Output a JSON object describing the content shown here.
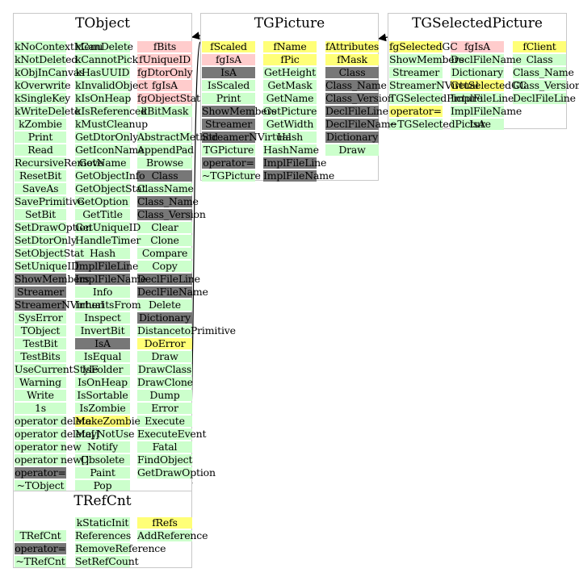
{
  "colors": {
    "green": "#ccffcc",
    "pink": "#ffcccc",
    "yellow": "#ffff77",
    "grey": "#777777",
    "border": "#c8c8c8"
  },
  "classes": {
    "tobject": {
      "title": "TObject",
      "col1": [
        {
          "t": "kNoContextMenu",
          "k": "green"
        },
        {
          "t": "kNotDeleted",
          "k": "green"
        },
        {
          "t": "kObjInCanvas",
          "k": "green"
        },
        {
          "t": "kOverwrite",
          "k": "green"
        },
        {
          "t": "kSingleKey",
          "k": "green"
        },
        {
          "t": "kWriteDelete",
          "k": "green"
        },
        {
          "t": "kZombie",
          "k": "green"
        },
        {
          "t": "Print",
          "k": "green"
        },
        {
          "t": "Read",
          "k": "green"
        },
        {
          "t": "RecursiveRemove",
          "k": "green"
        },
        {
          "t": "ResetBit",
          "k": "green"
        },
        {
          "t": "SaveAs",
          "k": "green"
        },
        {
          "t": "SavePrimitive",
          "k": "green"
        },
        {
          "t": "SetBit",
          "k": "green"
        },
        {
          "t": "SetDrawOption",
          "k": "green"
        },
        {
          "t": "SetDtorOnly",
          "k": "green"
        },
        {
          "t": "SetObjectStat",
          "k": "green"
        },
        {
          "t": "SetUniqueID",
          "k": "green"
        },
        {
          "t": "ShowMembers",
          "k": "grey"
        },
        {
          "t": "Streamer",
          "k": "grey"
        },
        {
          "t": "StreamerNVirtual",
          "k": "grey"
        },
        {
          "t": "SysError",
          "k": "green"
        },
        {
          "t": "TObject",
          "k": "green"
        },
        {
          "t": "TestBit",
          "k": "green"
        },
        {
          "t": "TestBits",
          "k": "green"
        },
        {
          "t": "UseCurrentStyle",
          "k": "green"
        },
        {
          "t": "Warning",
          "k": "green"
        },
        {
          "t": "Write",
          "k": "green"
        },
        {
          "t": "1s",
          "k": "green"
        },
        {
          "t": "operator delete",
          "k": "green"
        },
        {
          "t": "operator delete[]",
          "k": "green"
        },
        {
          "t": "operator new",
          "k": "green"
        },
        {
          "t": "operator new[]",
          "k": "green"
        },
        {
          "t": "operator=",
          "k": "grey"
        },
        {
          "t": "~TObject",
          "k": "green"
        }
      ],
      "col2": [
        {
          "t": "kCanDelete",
          "k": "green"
        },
        {
          "t": "kCannotPick",
          "k": "green"
        },
        {
          "t": "kHasUUID",
          "k": "green"
        },
        {
          "t": "kInvalidObject",
          "k": "green"
        },
        {
          "t": "kIsOnHeap",
          "k": "green"
        },
        {
          "t": "kIsReferenced",
          "k": "green"
        },
        {
          "t": "kMustCleanup",
          "k": "green"
        },
        {
          "t": "GetDtorOnly",
          "k": "green"
        },
        {
          "t": "GetIconName",
          "k": "green"
        },
        {
          "t": "GetName",
          "k": "green"
        },
        {
          "t": "GetObjectInfo",
          "k": "green"
        },
        {
          "t": "GetObjectStat",
          "k": "green"
        },
        {
          "t": "GetOption",
          "k": "green"
        },
        {
          "t": "GetTitle",
          "k": "green"
        },
        {
          "t": "GetUniqueID",
          "k": "green"
        },
        {
          "t": "HandleTimer",
          "k": "green"
        },
        {
          "t": "Hash",
          "k": "green"
        },
        {
          "t": "ImplFileLine",
          "k": "grey"
        },
        {
          "t": "ImplFileName",
          "k": "grey"
        },
        {
          "t": "Info",
          "k": "green"
        },
        {
          "t": "InheritsFrom",
          "k": "green"
        },
        {
          "t": "Inspect",
          "k": "green"
        },
        {
          "t": "InvertBit",
          "k": "green"
        },
        {
          "t": "IsA",
          "k": "grey"
        },
        {
          "t": "IsEqual",
          "k": "green"
        },
        {
          "t": "IsFolder",
          "k": "green"
        },
        {
          "t": "IsOnHeap",
          "k": "green"
        },
        {
          "t": "IsSortable",
          "k": "green"
        },
        {
          "t": "IsZombie",
          "k": "green"
        },
        {
          "t": "MakeZombie",
          "k": "yellow"
        },
        {
          "t": "MayNotUse",
          "k": "green"
        },
        {
          "t": "Notify",
          "k": "green"
        },
        {
          "t": "Obsolete",
          "k": "green"
        },
        {
          "t": "Paint",
          "k": "green"
        },
        {
          "t": "Pop",
          "k": "green"
        }
      ],
      "col3": [
        {
          "t": "fBits",
          "k": "pink"
        },
        {
          "t": "fUniqueID",
          "k": "pink"
        },
        {
          "t": "fgDtorOnly",
          "k": "pink"
        },
        {
          "t": "fgIsA",
          "k": "pink"
        },
        {
          "t": "fgObjectStat",
          "k": "pink"
        },
        {
          "t": "kBitMask",
          "k": "green"
        },
        {
          "t": "",
          "k": "none"
        },
        {
          "t": "AbstractMethod",
          "k": "green"
        },
        {
          "t": "AppendPad",
          "k": "green"
        },
        {
          "t": "Browse",
          "k": "green"
        },
        {
          "t": "Class",
          "k": "grey"
        },
        {
          "t": "ClassName",
          "k": "green"
        },
        {
          "t": "Class_Name",
          "k": "grey"
        },
        {
          "t": "Class_Version",
          "k": "grey"
        },
        {
          "t": "Clear",
          "k": "green"
        },
        {
          "t": "Clone",
          "k": "green"
        },
        {
          "t": "Compare",
          "k": "green"
        },
        {
          "t": "Copy",
          "k": "green"
        },
        {
          "t": "DeclFileLine",
          "k": "grey"
        },
        {
          "t": "DeclFileName",
          "k": "grey"
        },
        {
          "t": "Delete",
          "k": "green"
        },
        {
          "t": "Dictionary",
          "k": "grey"
        },
        {
          "t": "DistancetoPrimitive",
          "k": "green"
        },
        {
          "t": "DoError",
          "k": "yellow"
        },
        {
          "t": "Draw",
          "k": "green"
        },
        {
          "t": "DrawClass",
          "k": "green"
        },
        {
          "t": "DrawClone",
          "k": "green"
        },
        {
          "t": "Dump",
          "k": "green"
        },
        {
          "t": "Error",
          "k": "green"
        },
        {
          "t": "Execute",
          "k": "green"
        },
        {
          "t": "ExecuteEvent",
          "k": "green"
        },
        {
          "t": "Fatal",
          "k": "green"
        },
        {
          "t": "FindObject",
          "k": "green"
        },
        {
          "t": "GetDrawOption",
          "k": "green"
        }
      ]
    },
    "tgpicture": {
      "title": "TGPicture",
      "col1": [
        {
          "t": "fScaled",
          "k": "yellow"
        },
        {
          "t": "fgIsA",
          "k": "pink"
        },
        {
          "t": "IsA",
          "k": "grey"
        },
        {
          "t": "IsScaled",
          "k": "green"
        },
        {
          "t": "Print",
          "k": "green"
        },
        {
          "t": "ShowMembers",
          "k": "grey"
        },
        {
          "t": "Streamer",
          "k": "grey"
        },
        {
          "t": "StreamerNVirtual",
          "k": "grey"
        },
        {
          "t": "TGPicture",
          "k": "green"
        },
        {
          "t": "operator=",
          "k": "grey"
        },
        {
          "t": "~TGPicture",
          "k": "green"
        }
      ],
      "col2": [
        {
          "t": "fName",
          "k": "yellow"
        },
        {
          "t": "fPic",
          "k": "yellow"
        },
        {
          "t": "GetHeight",
          "k": "green"
        },
        {
          "t": "GetMask",
          "k": "green"
        },
        {
          "t": "GetName",
          "k": "green"
        },
        {
          "t": "GetPicture",
          "k": "green"
        },
        {
          "t": "GetWidth",
          "k": "green"
        },
        {
          "t": "Hash",
          "k": "green"
        },
        {
          "t": "HashName",
          "k": "green"
        },
        {
          "t": "ImplFileLine",
          "k": "grey"
        },
        {
          "t": "ImplFileName",
          "k": "grey"
        }
      ],
      "col3": [
        {
          "t": "fAttributes",
          "k": "yellow"
        },
        {
          "t": "fMask",
          "k": "yellow"
        },
        {
          "t": "Class",
          "k": "grey"
        },
        {
          "t": "Class_Name",
          "k": "grey"
        },
        {
          "t": "Class_Version",
          "k": "grey"
        },
        {
          "t": "DeclFileLine",
          "k": "grey"
        },
        {
          "t": "DeclFileName",
          "k": "grey"
        },
        {
          "t": "Dictionary",
          "k": "grey"
        },
        {
          "t": "Draw",
          "k": "green"
        }
      ]
    },
    "tgselectedpicture": {
      "title": "TGSelectedPicture",
      "col1": [
        {
          "t": "fgSelectedGC",
          "k": "yellow"
        },
        {
          "t": "ShowMembers",
          "k": "green"
        },
        {
          "t": "Streamer",
          "k": "green"
        },
        {
          "t": "StreamerNVirtual",
          "k": "green"
        },
        {
          "t": "TGSelectedPicture",
          "k": "green"
        },
        {
          "t": "operator=",
          "k": "yellow"
        },
        {
          "t": "~TGSelectedPicture",
          "k": "green"
        }
      ],
      "col2": [
        {
          "t": "fgIsA",
          "k": "pink"
        },
        {
          "t": "DeclFileName",
          "k": "green"
        },
        {
          "t": "Dictionary",
          "k": "green"
        },
        {
          "t": "GetSelectedGC",
          "k": "yellow"
        },
        {
          "t": "ImplFileLine",
          "k": "green"
        },
        {
          "t": "ImplFileName",
          "k": "green"
        },
        {
          "t": "IsA",
          "k": "green"
        }
      ],
      "col3": [
        {
          "t": "fClient",
          "k": "yellow"
        },
        {
          "t": "Class",
          "k": "green"
        },
        {
          "t": "Class_Name",
          "k": "green"
        },
        {
          "t": "Class_Version",
          "k": "green"
        },
        {
          "t": "DeclFileLine",
          "k": "green"
        }
      ]
    },
    "trefcnt": {
      "title": "TRefCnt",
      "col1": [
        {
          "t": "",
          "k": "none"
        },
        {
          "t": "TRefCnt",
          "k": "green"
        },
        {
          "t": "operator=",
          "k": "grey"
        },
        {
          "t": "~TRefCnt",
          "k": "green"
        }
      ],
      "col2": [
        {
          "t": "kStaticInit",
          "k": "green"
        },
        {
          "t": "References",
          "k": "green"
        },
        {
          "t": "RemoveReference",
          "k": "green"
        },
        {
          "t": "SetRefCount",
          "k": "green"
        }
      ],
      "col3": [
        {
          "t": "fRefs",
          "k": "yellow"
        },
        {
          "t": "AddReference",
          "k": "green"
        }
      ]
    }
  }
}
